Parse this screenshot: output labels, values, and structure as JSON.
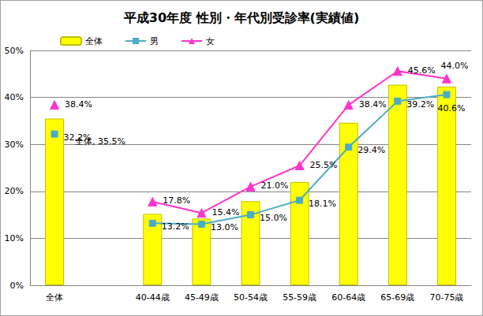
{
  "chart_data": {
    "type": "bar",
    "title": "平成30年度 性別・年代別受診率(実績値)",
    "categories": [
      "全体",
      null,
      "40-44歳",
      "45-49歳",
      "50-54歳",
      "55-59歳",
      "60-64歳",
      "65-69歳",
      "70-75歳"
    ],
    "series": [
      {
        "name": "全体",
        "type": "bar",
        "color": "#ffff00",
        "values": [
          35.5,
          null,
          15.2,
          14.2,
          17.9,
          22.0,
          34.6,
          42.7,
          42.3
        ],
        "value_labels": [
          "全体, 35.5%",
          null,
          null,
          null,
          null,
          null,
          null,
          null,
          null
        ]
      },
      {
        "name": "男",
        "type": "line",
        "color": "#4bacc6",
        "marker": "square",
        "line_style": "solid",
        "values": [
          32.2,
          null,
          13.2,
          13.0,
          15.0,
          18.1,
          29.4,
          39.2,
          40.6
        ],
        "value_labels": [
          "32.2%",
          null,
          "13.2%",
          "13.0%",
          "15.0%",
          "18.1%",
          "29.4%",
          "39.2%",
          "40.6%"
        ]
      },
      {
        "name": "女",
        "type": "line",
        "color": "#ff33cc",
        "marker": "triangle",
        "line_style": "solid",
        "values": [
          38.4,
          null,
          17.8,
          15.4,
          21.0,
          25.5,
          38.4,
          45.6,
          44.0
        ],
        "value_labels": [
          "38.4%",
          null,
          "17.8%",
          "15.4%",
          "21.0%",
          "25.5%",
          "38.4%",
          "45.6%",
          "44.0%"
        ]
      }
    ],
    "ylim": [
      0,
      50
    ],
    "yticks": [
      {
        "value": 0,
        "label": "0%"
      },
      {
        "value": 10,
        "label": "10%"
      },
      {
        "value": 20,
        "label": "20%"
      },
      {
        "value": 30,
        "label": "30%"
      },
      {
        "value": 40,
        "label": "40%"
      },
      {
        "value": 50,
        "label": "50%"
      }
    ],
    "grid": true,
    "legend": "top",
    "data_labels": true
  }
}
